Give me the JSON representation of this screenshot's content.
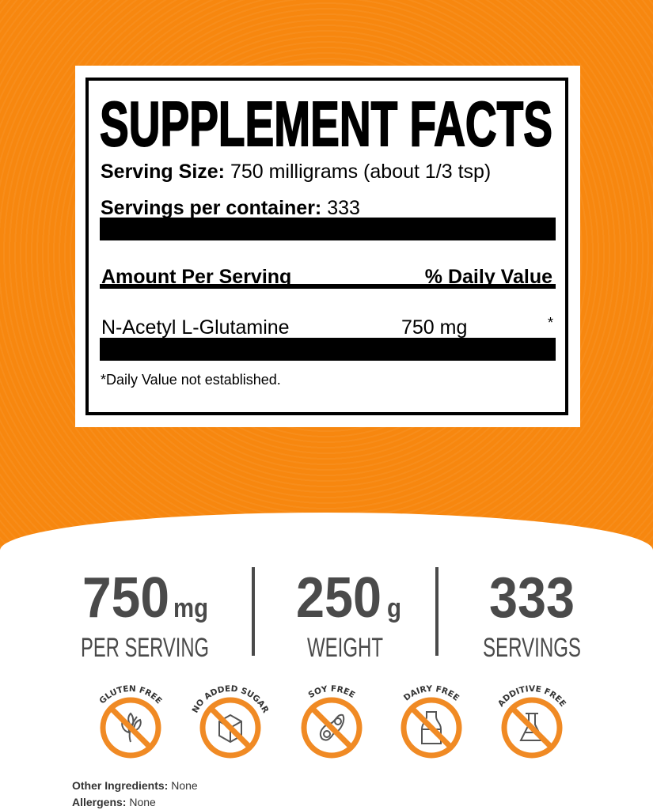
{
  "label": {
    "title": "SUPPLEMENT FACTS",
    "serving_size_label": "Serving Size:",
    "serving_size_value": "750 milligrams (about 1/3 tsp)",
    "servings_label": "Servings per container:",
    "servings_value": "333",
    "amount_header": "Amount Per Serving",
    "dv_header": "% Daily Value",
    "ingredient": {
      "name": "N-Acetyl L-Glutamine",
      "amount": "750 mg",
      "dv": "*"
    },
    "footnote": "*Daily Value not established."
  },
  "stats": [
    {
      "number": "750",
      "unit": "mg",
      "caption": "PER SERVING"
    },
    {
      "number": "250",
      "unit": "g",
      "caption": "WEIGHT"
    },
    {
      "number": "333",
      "unit": "",
      "caption": "SERVINGS"
    }
  ],
  "badges": [
    {
      "label": "GLUTEN FREE",
      "icon": "wheat-icon"
    },
    {
      "label": "NO ADDED SUGAR",
      "icon": "sugar-cube-icon"
    },
    {
      "label": "SOY FREE",
      "icon": "soybean-icon"
    },
    {
      "label": "DAIRY FREE",
      "icon": "milk-bottle-icon"
    },
    {
      "label": "ADDITIVE FREE",
      "icon": "flask-icon"
    }
  ],
  "other_ingredients": {
    "label": "Other Ingredients:",
    "value": "None"
  },
  "allergens": {
    "label": "Allergens:",
    "value": "None"
  },
  "colors": {
    "orange": "#f7870f",
    "badge_orange": "#f08a24",
    "text_gray": "#4a4a4a"
  }
}
